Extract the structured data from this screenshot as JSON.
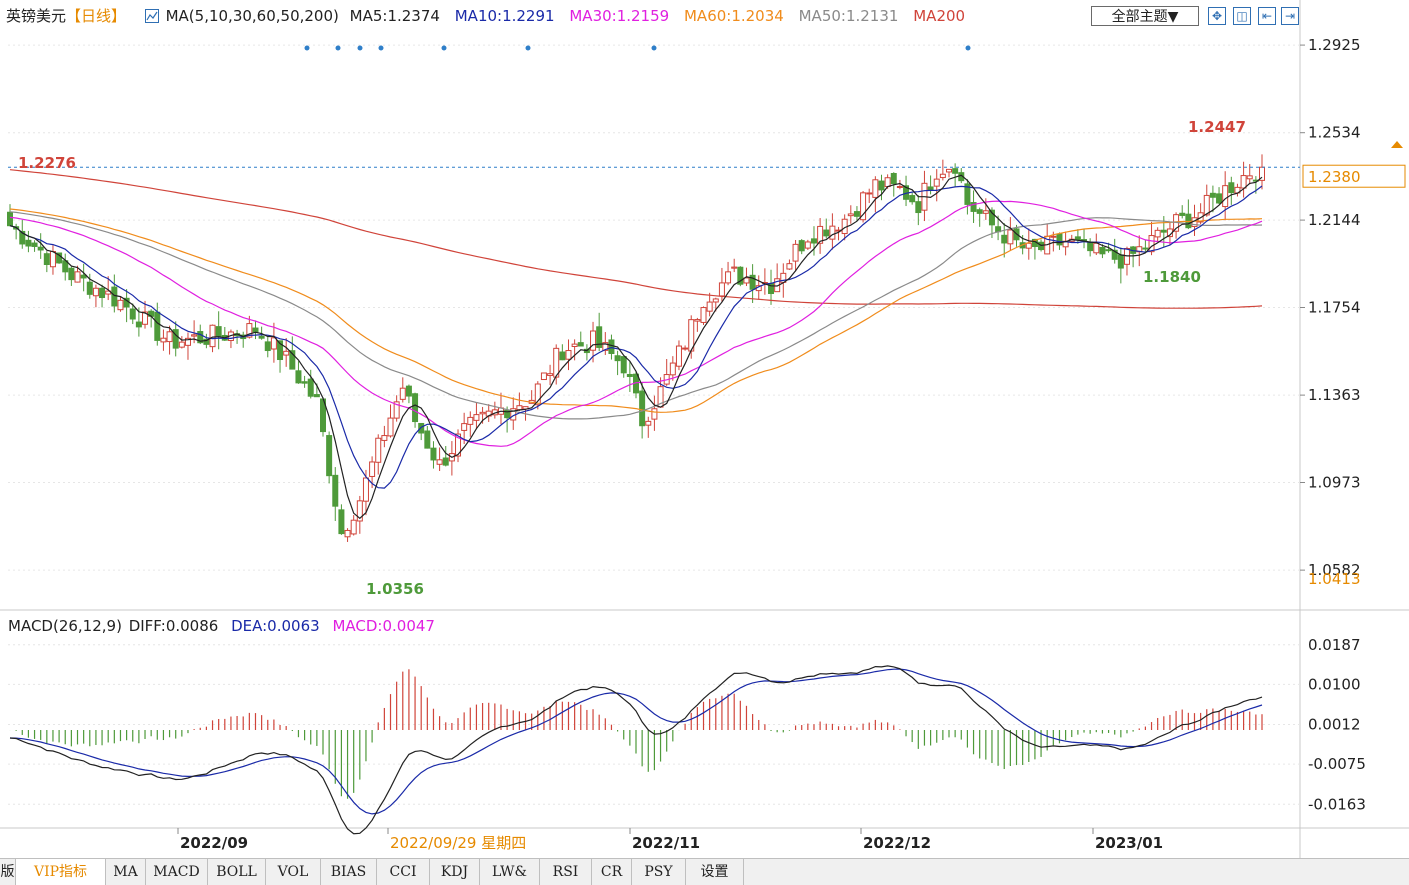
{
  "header": {
    "symbol": "英镑美元",
    "period": "【日线】",
    "ma_params": "MA(5,10,30,60,50,200)",
    "ma_values": [
      {
        "label": "MA5:1.2374",
        "color": "#222222"
      },
      {
        "label": "MA10:1.2291",
        "color": "#1a2aa8"
      },
      {
        "label": "MA30:1.2159",
        "color": "#e020e0"
      },
      {
        "label": "MA60:1.2034",
        "color": "#f08c1c"
      },
      {
        "label": "MA50:1.2131",
        "color": "#8a8a8a"
      },
      {
        "label": "MA200",
        "color": "#d0443a"
      }
    ],
    "theme_button": "全部主题▼"
  },
  "macd_header": {
    "label": "MACD(26,12,9)",
    "diff": "DIFF:0.0086",
    "dea": "DEA:0.0063",
    "macd": "MACD:0.0047"
  },
  "bottom_tabs": [
    "版",
    "VIP指标",
    "MA",
    "MACD",
    "BOLL",
    "VOL",
    "BIAS",
    "CCI",
    "KDJ",
    "LW&",
    "RSI",
    "CR",
    "PSY",
    "设置"
  ],
  "active_tab": "VIP指标",
  "chart_data": {
    "type": "candlestick",
    "price_axis_ticks": [
      1.2925,
      1.2534,
      1.2144,
      1.1754,
      1.1363,
      1.0973,
      1.0582
    ],
    "price_ylim": [
      1.0413,
      1.297
    ],
    "current_price": "1.2380",
    "bottom_price": "1.0413",
    "annotations": {
      "high_label": "1.2447",
      "low_label": "1.0356",
      "start_label": "1.2276",
      "swing_low_label": "1.1840"
    },
    "macd_axis_ticks": [
      "0.0187",
      "0.0100",
      "0.0012",
      "-0.0075",
      "-0.0163"
    ],
    "macd_ylim": [
      -0.0215,
      0.0215
    ],
    "x_labels": [
      {
        "label": "2022/09",
        "color": "#222222"
      },
      {
        "label": "2022/09/29 星期四",
        "color": "#e68a00"
      },
      {
        "label": "2022/11",
        "color": "#222222"
      },
      {
        "label": "2022/12",
        "color": "#222222"
      },
      {
        "label": "2023/01",
        "color": "#222222"
      }
    ],
    "colors": {
      "up": "#d0443a",
      "down": "#4e9a3a",
      "ma5": "#222222",
      "ma10": "#1a2aa8",
      "ma30": "#e020e0",
      "ma60": "#f08c1c",
      "ma50": "#8a8a8a",
      "ma200": "#d0443a",
      "diff": "#222222",
      "dea": "#1a2aa8",
      "current_line": "#2f7fc9"
    }
  }
}
